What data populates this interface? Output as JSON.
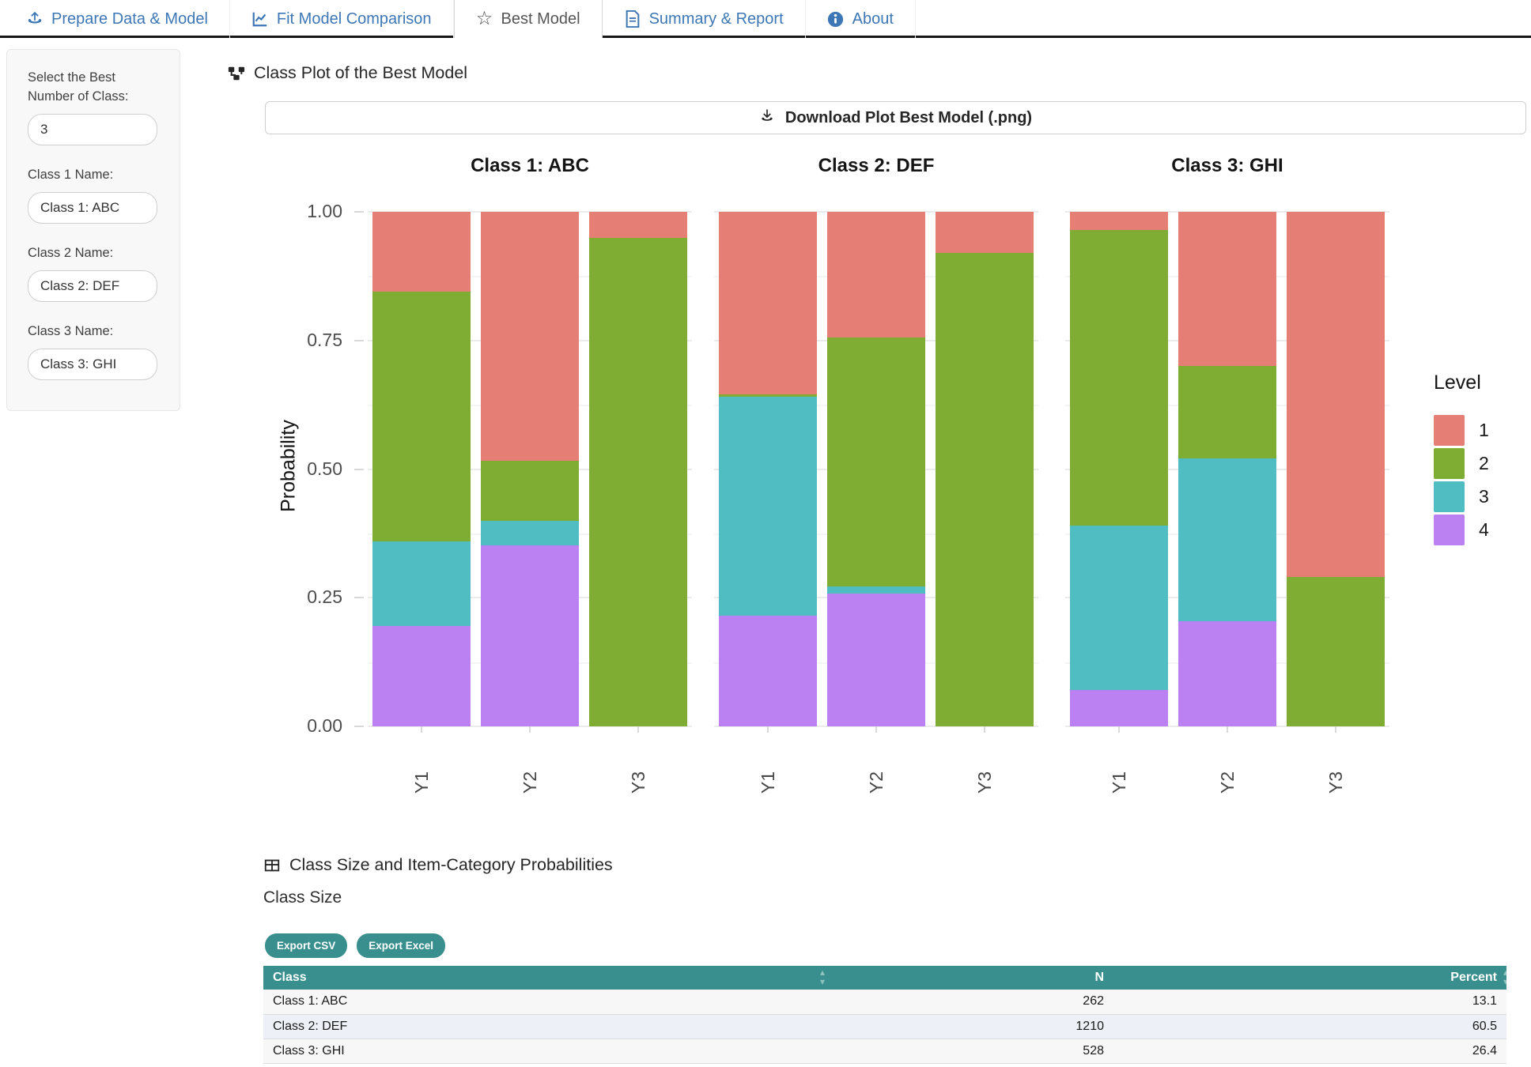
{
  "navbar": {
    "tabs": [
      {
        "label": "Prepare Data & Model",
        "icon": "upload-icon",
        "active": false
      },
      {
        "label": "Fit Model Comparison",
        "icon": "chart-line-icon",
        "active": false
      },
      {
        "label": "Best Model",
        "icon": "star-icon",
        "active": true
      },
      {
        "label": "Summary & Report",
        "icon": "file-icon",
        "active": false
      },
      {
        "label": "About",
        "icon": "info-icon",
        "active": false
      }
    ]
  },
  "sidebar": {
    "fields": [
      {
        "label": "Select the Best Number of Class:",
        "value": "3",
        "name": "best-number-of-class-input"
      },
      {
        "label": "Class 1 Name:",
        "value": "Class 1: ABC",
        "name": "class-1-name-input"
      },
      {
        "label": "Class 2 Name:",
        "value": "Class 2: DEF",
        "name": "class-2-name-input"
      },
      {
        "label": "Class 3 Name:",
        "value": "Class 3: GHI",
        "name": "class-3-name-input"
      }
    ]
  },
  "plot_section": {
    "title": "Class Plot of the Best Model",
    "icon": "project-diagram-icon",
    "download_label": "Download Plot Best Model (.png)"
  },
  "chart_data": {
    "type": "bar",
    "stacked": true,
    "ylabel": "Probability",
    "ylim": [
      0,
      1
    ],
    "y_ticks": [
      0,
      0.25,
      0.5,
      0.75,
      1.0
    ],
    "y_tick_labels": [
      "0.00",
      "0.25",
      "0.50",
      "0.75",
      "1.00"
    ],
    "minor_y_ticks": [
      0.125,
      0.375,
      0.625,
      0.875
    ],
    "categories": [
      "Y1",
      "Y2",
      "Y3"
    ],
    "stack_order_bottom_up": [
      "4",
      "3",
      "2",
      "1"
    ],
    "colors": {
      "1": "#E57F76",
      "2": "#7FAC33",
      "3": "#4FBDC2",
      "4": "#BB80F2"
    },
    "legend": {
      "title": "Level",
      "entries": [
        {
          "label": "1",
          "color": "#E57F76"
        },
        {
          "label": "2",
          "color": "#7FAC33"
        },
        {
          "label": "3",
          "color": "#4FBDC2"
        },
        {
          "label": "4",
          "color": "#BB80F2"
        }
      ]
    },
    "facets": [
      {
        "title": "Class 1: ABC",
        "values": {
          "Y1": [
            0.195,
            0.165,
            0.485,
            0.155
          ],
          "Y2": [
            0.352,
            0.048,
            0.116,
            0.484
          ],
          "Y3": [
            0,
            0,
            0.95,
            0.05
          ]
        }
      },
      {
        "title": "Class 2: DEF",
        "values": {
          "Y1": [
            0.215,
            0.425,
            0.005,
            0.355
          ],
          "Y2": [
            0.258,
            0.014,
            0.483,
            0.245
          ],
          "Y3": [
            0,
            0,
            0.92,
            0.08
          ]
        }
      },
      {
        "title": "Class 3: GHI",
        "values": {
          "Y1": [
            0.07,
            0.32,
            0.575,
            0.035
          ],
          "Y2": [
            0.205,
            0.315,
            0.18,
            0.3
          ],
          "Y3": [
            0,
            0,
            0.29,
            0.71
          ]
        }
      }
    ]
  },
  "table_section": {
    "title": "Class Size and Item-Category Probabilities",
    "icon": "table-icon",
    "subtitle": "Class Size",
    "export_buttons": [
      "Export CSV",
      "Export Excel"
    ],
    "table": {
      "columns": [
        {
          "label": "Class",
          "align": "left"
        },
        {
          "label": "N",
          "align": "right"
        },
        {
          "label": "Percent",
          "align": "right"
        }
      ],
      "rows": [
        [
          "Class 1: ABC",
          "262",
          "13.1"
        ],
        [
          "Class 2: DEF",
          "1210",
          "60.5"
        ],
        [
          "Class 3: GHI",
          "528",
          "26.4"
        ]
      ]
    }
  },
  "colors": {
    "accent_blue": "#3D77B6",
    "teal": "#398E8E",
    "nav_underline": "#161616"
  }
}
